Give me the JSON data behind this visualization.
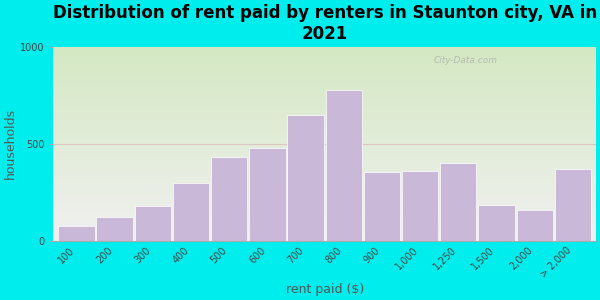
{
  "title": "Distribution of rent paid by renters in Staunton city, VA in\n2021",
  "xlabel": "rent paid ($)",
  "ylabel": "households",
  "bar_labels": [
    "100",
    "200",
    "300",
    "400",
    "500",
    "600",
    "700",
    "800",
    "900",
    "1,000",
    "1,250",
    "1,500",
    "2,000",
    "> 2,000"
  ],
  "bar_values": [
    75,
    120,
    180,
    300,
    430,
    480,
    650,
    780,
    355,
    360,
    400,
    185,
    160,
    370
  ],
  "bar_color": "#c9b8d8",
  "background_outer": "#00eded",
  "background_plot_top": "#d4e8c2",
  "background_plot_bottom": "#f0f0f0",
  "ylim": [
    0,
    1000
  ],
  "yticks": [
    0,
    500,
    1000
  ],
  "watermark": "City-Data.com",
  "title_fontsize": 12,
  "axis_label_fontsize": 9,
  "tick_fontsize": 7,
  "ylabel_color": "#555555",
  "xlabel_color": "#555555",
  "title_color": "#000000"
}
